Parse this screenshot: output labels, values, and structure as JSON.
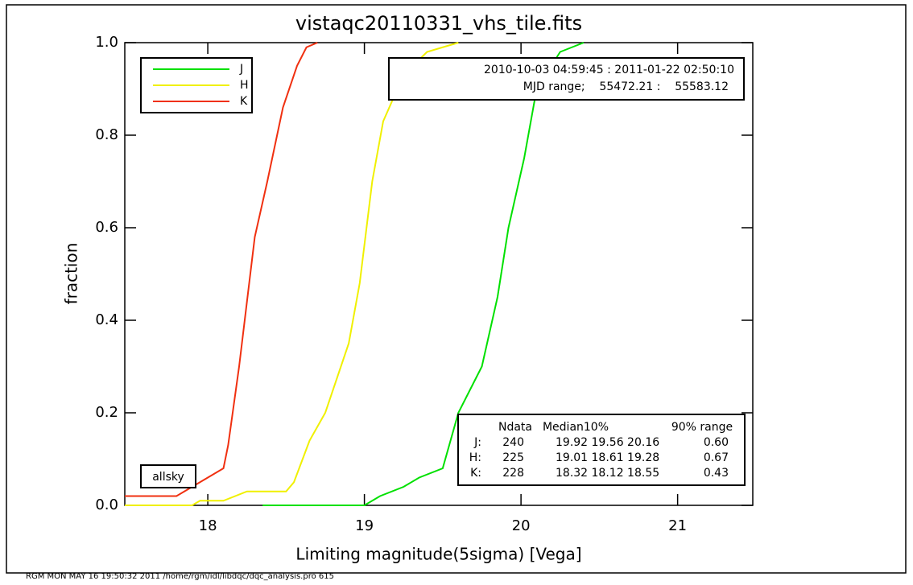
{
  "chart_data": {
    "type": "line",
    "title": "vistaqc20110331_vhs_tile.fits",
    "x_label": "Limiting magnitude(5sigma) [Vega]",
    "y_label": "fraction",
    "xlim": [
      17.47,
      21.48
    ],
    "ylim": [
      0,
      1
    ],
    "xticks": [
      18,
      19,
      20,
      21
    ],
    "yticks": [
      {
        "value": 0,
        "label": "0.0"
      },
      0.2,
      0.4,
      0.6,
      0.8,
      {
        "value": 1,
        "label": "1.0"
      }
    ],
    "series": [
      {
        "name": "J",
        "color": "#00e000",
        "x": [
          18.35,
          19.0,
          19.1,
          19.25,
          19.35,
          19.5,
          19.6,
          19.75,
          19.85,
          19.92,
          20.02,
          20.1,
          20.25,
          20.4
        ],
        "values": [
          0.0,
          0.0,
          0.02,
          0.04,
          0.06,
          0.08,
          0.2,
          0.3,
          0.45,
          0.6,
          0.75,
          0.9,
          0.98,
          1.0
        ]
      },
      {
        "name": "H",
        "color": "#f0f000",
        "x": [
          17.47,
          17.9,
          17.95,
          18.1,
          18.25,
          18.5,
          18.55,
          18.65,
          18.75,
          18.9,
          18.97,
          19.05,
          19.12,
          19.25,
          19.4,
          19.6
        ],
        "values": [
          0.0,
          0.0,
          0.01,
          0.01,
          0.03,
          0.03,
          0.05,
          0.14,
          0.2,
          0.35,
          0.48,
          0.7,
          0.83,
          0.93,
          0.98,
          1.0
        ]
      },
      {
        "name": "K",
        "color": "#f03010",
        "x": [
          17.47,
          17.8,
          17.95,
          18.0,
          18.1,
          18.13,
          18.2,
          18.3,
          18.38,
          18.48,
          18.57,
          18.63,
          18.7
        ],
        "values": [
          0.02,
          0.02,
          0.05,
          0.06,
          0.08,
          0.13,
          0.3,
          0.58,
          0.7,
          0.86,
          0.95,
          0.99,
          1.0
        ]
      }
    ],
    "date_range": "2010-10-03 04:59:45 : 2011-01-22 02:50:10",
    "mjd_range": "MJD range;    55472.21 :    55583.12",
    "stats": {
      "header": [
        "Ndata",
        "Median10%",
        "90% range"
      ],
      "rows": [
        [
          "J:",
          "240",
          "19.92 19.56 20.16",
          "0.60"
        ],
        [
          "H:",
          "225",
          "19.01 18.61 19.28",
          "0.67"
        ],
        [
          "K:",
          "228",
          "18.32 18.12 18.55",
          "0.43"
        ]
      ]
    },
    "mode_label": "allsky",
    "footer": "RGM MON MAY 16 19:50:32 2011 /home/rgm/idl/libdqc/dqc_analysis.pro 615"
  }
}
